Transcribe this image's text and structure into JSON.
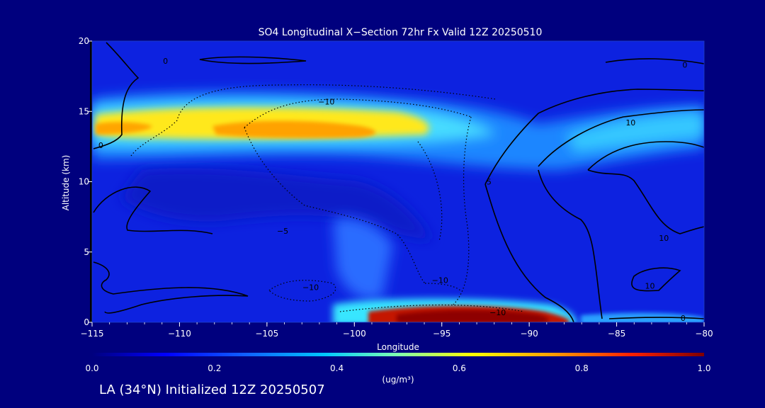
{
  "chart_data": {
    "type": "heatmap",
    "title": "SO4 Longitudinal X−Section 72hr  Fx Valid 12Z 20250510",
    "xlabel": "Longitude",
    "ylabel": "Altitude (km)",
    "xlim": [
      -115,
      -80
    ],
    "ylim": [
      0,
      20
    ],
    "x_ticks": [
      "−115",
      "−110",
      "−105",
      "−100",
      "−95",
      "−90",
      "−85",
      "−80"
    ],
    "y_ticks": [
      "0",
      "5",
      "10",
      "15",
      "20"
    ],
    "colorbar": {
      "label": "(ug/m³)",
      "range": [
        0.0,
        1.0
      ],
      "ticks": [
        "0.0",
        "0.2",
        "0.4",
        "0.6",
        "0.8",
        "1.0"
      ]
    },
    "concentration_features": [
      {
        "lon_range": [
          -115,
          -80
        ],
        "alt_range": [
          12,
          17
        ],
        "value": 0.2
      },
      {
        "lon_range": [
          -115,
          -94
        ],
        "alt_range": [
          13,
          14.5
        ],
        "value": 0.6
      },
      {
        "lon_range": [
          -108,
          -101
        ],
        "alt_range": [
          13.2,
          14.2
        ],
        "value": 0.7
      },
      {
        "lon_range": [
          -89,
          -80
        ],
        "alt_range": [
          13,
          15.5
        ],
        "value": 0.35
      },
      {
        "lon_range": [
          -99,
          -88.5
        ],
        "alt_range": [
          0,
          1.2
        ],
        "value": 0.98
      },
      {
        "lon_range": [
          -100.5,
          -87.5
        ],
        "alt_range": [
          0,
          1.5
        ],
        "value": 0.5
      }
    ],
    "contour_labels": [
      {
        "text": "0",
        "lon": -110.8,
        "alt": 18.4
      },
      {
        "text": "0",
        "lon": -114.5,
        "alt": 12.4
      },
      {
        "text": "−10",
        "lon": -101.6,
        "alt": 15.5
      },
      {
        "text": "−10",
        "lon": -102.5,
        "alt": 2.3
      },
      {
        "text": "−10",
        "lon": -95.1,
        "alt": 2.8
      },
      {
        "text": "−10",
        "lon": -91.8,
        "alt": 0.5
      },
      {
        "text": "−5",
        "lon": -104.1,
        "alt": 6.3
      },
      {
        "text": "5",
        "lon": -92.3,
        "alt": 9.8
      },
      {
        "text": "0",
        "lon": -81.1,
        "alt": 18.1
      },
      {
        "text": "10",
        "lon": -84.2,
        "alt": 14.0
      },
      {
        "text": "10",
        "lon": -82.3,
        "alt": 5.8
      },
      {
        "text": "10",
        "lon": -83.1,
        "alt": 2.4
      },
      {
        "text": "0",
        "lon": -81.2,
        "alt": 0.1
      }
    ]
  },
  "footer": "LA (34°N) Initialized 12Z 20250507"
}
